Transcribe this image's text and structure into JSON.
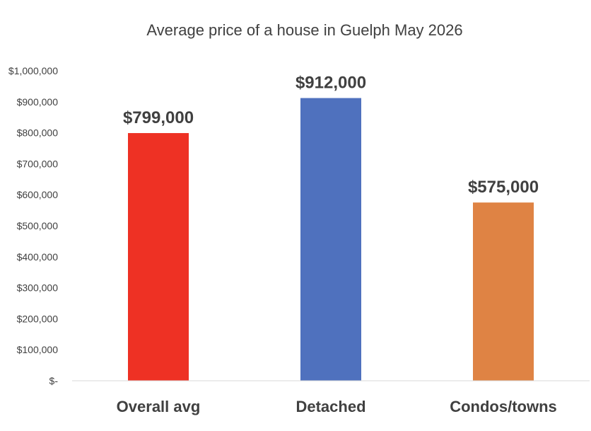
{
  "chart_data": {
    "type": "bar",
    "title": "Average price of a house in Guelph May 2026",
    "categories": [
      "Overall avg",
      "Detached",
      "Condos/towns"
    ],
    "values": [
      799000,
      912000,
      575000
    ],
    "data_labels": [
      "$799,000",
      "$912,000",
      "$575,000"
    ],
    "colors": [
      "#ee3124",
      "#4f71be",
      "#df8344"
    ],
    "ylim": [
      0,
      1000000
    ],
    "y_ticks": [
      0,
      100000,
      200000,
      300000,
      400000,
      500000,
      600000,
      700000,
      800000,
      900000,
      1000000
    ],
    "y_tick_labels": [
      "$-",
      "$100,000",
      "$200,000",
      "$300,000",
      "$400,000",
      "$500,000",
      "$600,000",
      "$700,000",
      "$800,000",
      "$900,000",
      "$1,000,000"
    ],
    "xlabel": "",
    "ylabel": "",
    "grid": false,
    "legend": "none"
  }
}
